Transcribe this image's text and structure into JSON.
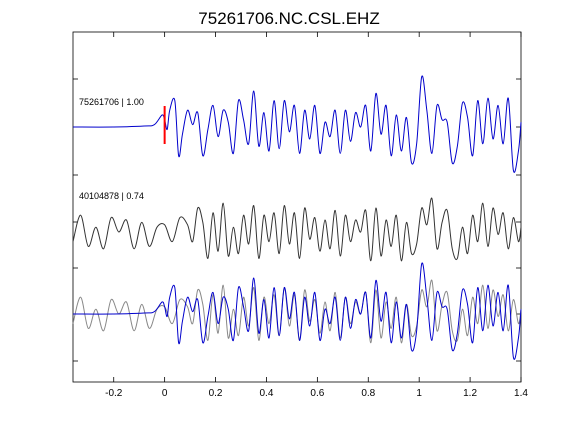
{
  "title": "75261706.NC.CSL.EHZ",
  "chart_data": {
    "type": "line",
    "title": "75261706.NC.CSL.EHZ",
    "xlabel": "",
    "ylabel": "",
    "xlim": [
      -0.36,
      1.4
    ],
    "xticks": [
      -0.2,
      0,
      0.2,
      0.4,
      0.6,
      0.8,
      1,
      1.2,
      1.4
    ],
    "xtick_labels": [
      "-0.2",
      "0",
      "0.2",
      "0.4",
      "0.6",
      "0.8",
      "1",
      "1.2",
      "1.4"
    ],
    "ytick_labels": [],
    "grid": false,
    "pick_marker": {
      "x": 0,
      "color": "#ff0000"
    },
    "traces": [
      {
        "id": "trace-blue-top",
        "label": "75261706 | 1.00",
        "color": "#0000cc",
        "row": 0
      },
      {
        "id": "trace-gray-middle",
        "label": "40104878 | 0.74",
        "color": "#333333",
        "row": 1
      },
      {
        "id": "trace-overlay-gray",
        "label": "",
        "color": "#888888",
        "row": 2
      },
      {
        "id": "trace-overlay-blue",
        "label": "",
        "color": "#0000cc",
        "row": 2
      }
    ],
    "series_blue": {
      "x": [
        -0.36,
        -0.2,
        -0.08,
        -0.04,
        -0.01,
        0.0,
        0.01,
        0.02,
        0.04,
        0.055,
        0.07,
        0.09,
        0.11,
        0.13,
        0.15,
        0.17,
        0.19,
        0.21,
        0.23,
        0.25,
        0.27,
        0.29,
        0.31,
        0.33,
        0.35,
        0.37,
        0.39,
        0.41,
        0.43,
        0.45,
        0.47,
        0.49,
        0.51,
        0.53,
        0.55,
        0.57,
        0.59,
        0.61,
        0.63,
        0.65,
        0.67,
        0.69,
        0.71,
        0.73,
        0.75,
        0.77,
        0.79,
        0.81,
        0.83,
        0.85,
        0.87,
        0.89,
        0.91,
        0.93,
        0.95,
        0.97,
        0.99,
        1.01,
        1.03,
        1.05,
        1.07,
        1.09,
        1.11,
        1.13,
        1.15,
        1.17,
        1.19,
        1.21,
        1.23,
        1.25,
        1.27,
        1.29,
        1.31,
        1.33,
        1.35,
        1.37,
        1.39,
        1.4
      ],
      "y": [
        0,
        0,
        0.02,
        0.05,
        0.25,
        0.15,
        -0.05,
        0.35,
        0.55,
        -0.6,
        -0.15,
        0.35,
        0.05,
        0.3,
        -0.6,
        -0.05,
        0.45,
        -0.2,
        0.35,
        0.1,
        -0.55,
        0.55,
        0.15,
        -0.35,
        0.75,
        -0.4,
        0.3,
        -0.5,
        0.55,
        -0.45,
        0.55,
        -0.1,
        0.45,
        -0.55,
        0.35,
        -0.25,
        0.45,
        -0.55,
        0.1,
        -0.2,
        0.35,
        -0.55,
        0.35,
        -0.3,
        0.3,
        0.0,
        0.45,
        -0.5,
        0.7,
        -0.15,
        0.45,
        -0.6,
        0.25,
        -0.5,
        0.2,
        -0.75,
        -0.35,
        1.05,
        0.35,
        -0.55,
        0.45,
        0.15,
        0.1,
        -0.75,
        -0.4,
        0.5,
        0.2,
        -0.6,
        0.55,
        -0.35,
        0.6,
        -0.25,
        0.45,
        -0.35,
        0.6,
        -0.9,
        -0.5,
        0.1
      ]
    },
    "series_gray": {
      "x": [
        -0.36,
        -0.33,
        -0.3,
        -0.27,
        -0.24,
        -0.21,
        -0.18,
        -0.15,
        -0.12,
        -0.09,
        -0.06,
        -0.03,
        0.0,
        0.03,
        0.06,
        0.09,
        0.11,
        0.13,
        0.15,
        0.17,
        0.19,
        0.21,
        0.23,
        0.25,
        0.27,
        0.29,
        0.31,
        0.33,
        0.35,
        0.37,
        0.39,
        0.41,
        0.43,
        0.45,
        0.47,
        0.49,
        0.51,
        0.53,
        0.55,
        0.57,
        0.59,
        0.61,
        0.63,
        0.65,
        0.67,
        0.69,
        0.71,
        0.73,
        0.75,
        0.77,
        0.79,
        0.81,
        0.83,
        0.85,
        0.87,
        0.89,
        0.91,
        0.93,
        0.95,
        0.97,
        0.99,
        1.01,
        1.03,
        1.05,
        1.07,
        1.09,
        1.11,
        1.13,
        1.15,
        1.17,
        1.19,
        1.21,
        1.23,
        1.25,
        1.27,
        1.29,
        1.31,
        1.33,
        1.35,
        1.37,
        1.39,
        1.4
      ],
      "y": [
        -0.2,
        0.35,
        -0.3,
        0.1,
        -0.35,
        0.3,
        0.0,
        0.25,
        -0.35,
        0.2,
        -0.3,
        0.1,
        0.15,
        -0.2,
        0.3,
        0.15,
        -0.2,
        0.5,
        0.2,
        -0.55,
        0.4,
        -0.4,
        0.6,
        -0.5,
        0.1,
        -0.45,
        0.35,
        -0.25,
        0.55,
        -0.55,
        0.35,
        -0.2,
        0.4,
        -0.45,
        0.55,
        -0.25,
        0.4,
        -0.55,
        0.5,
        -0.15,
        0.3,
        -0.4,
        0.25,
        -0.35,
        0.45,
        -0.5,
        0.35,
        -0.2,
        0.25,
        0.0,
        0.45,
        -0.6,
        0.5,
        -0.5,
        0.25,
        -0.3,
        0.35,
        -0.6,
        0.2,
        -0.45,
        -0.25,
        0.5,
        0.15,
        0.7,
        -0.35,
        0.2,
        0.45,
        -0.35,
        -0.55,
        0.1,
        -0.45,
        0.35,
        -0.2,
        0.6,
        -0.3,
        0.5,
        -0.05,
        0.4,
        -0.35,
        0.3,
        -0.2,
        0.1
      ]
    }
  }
}
